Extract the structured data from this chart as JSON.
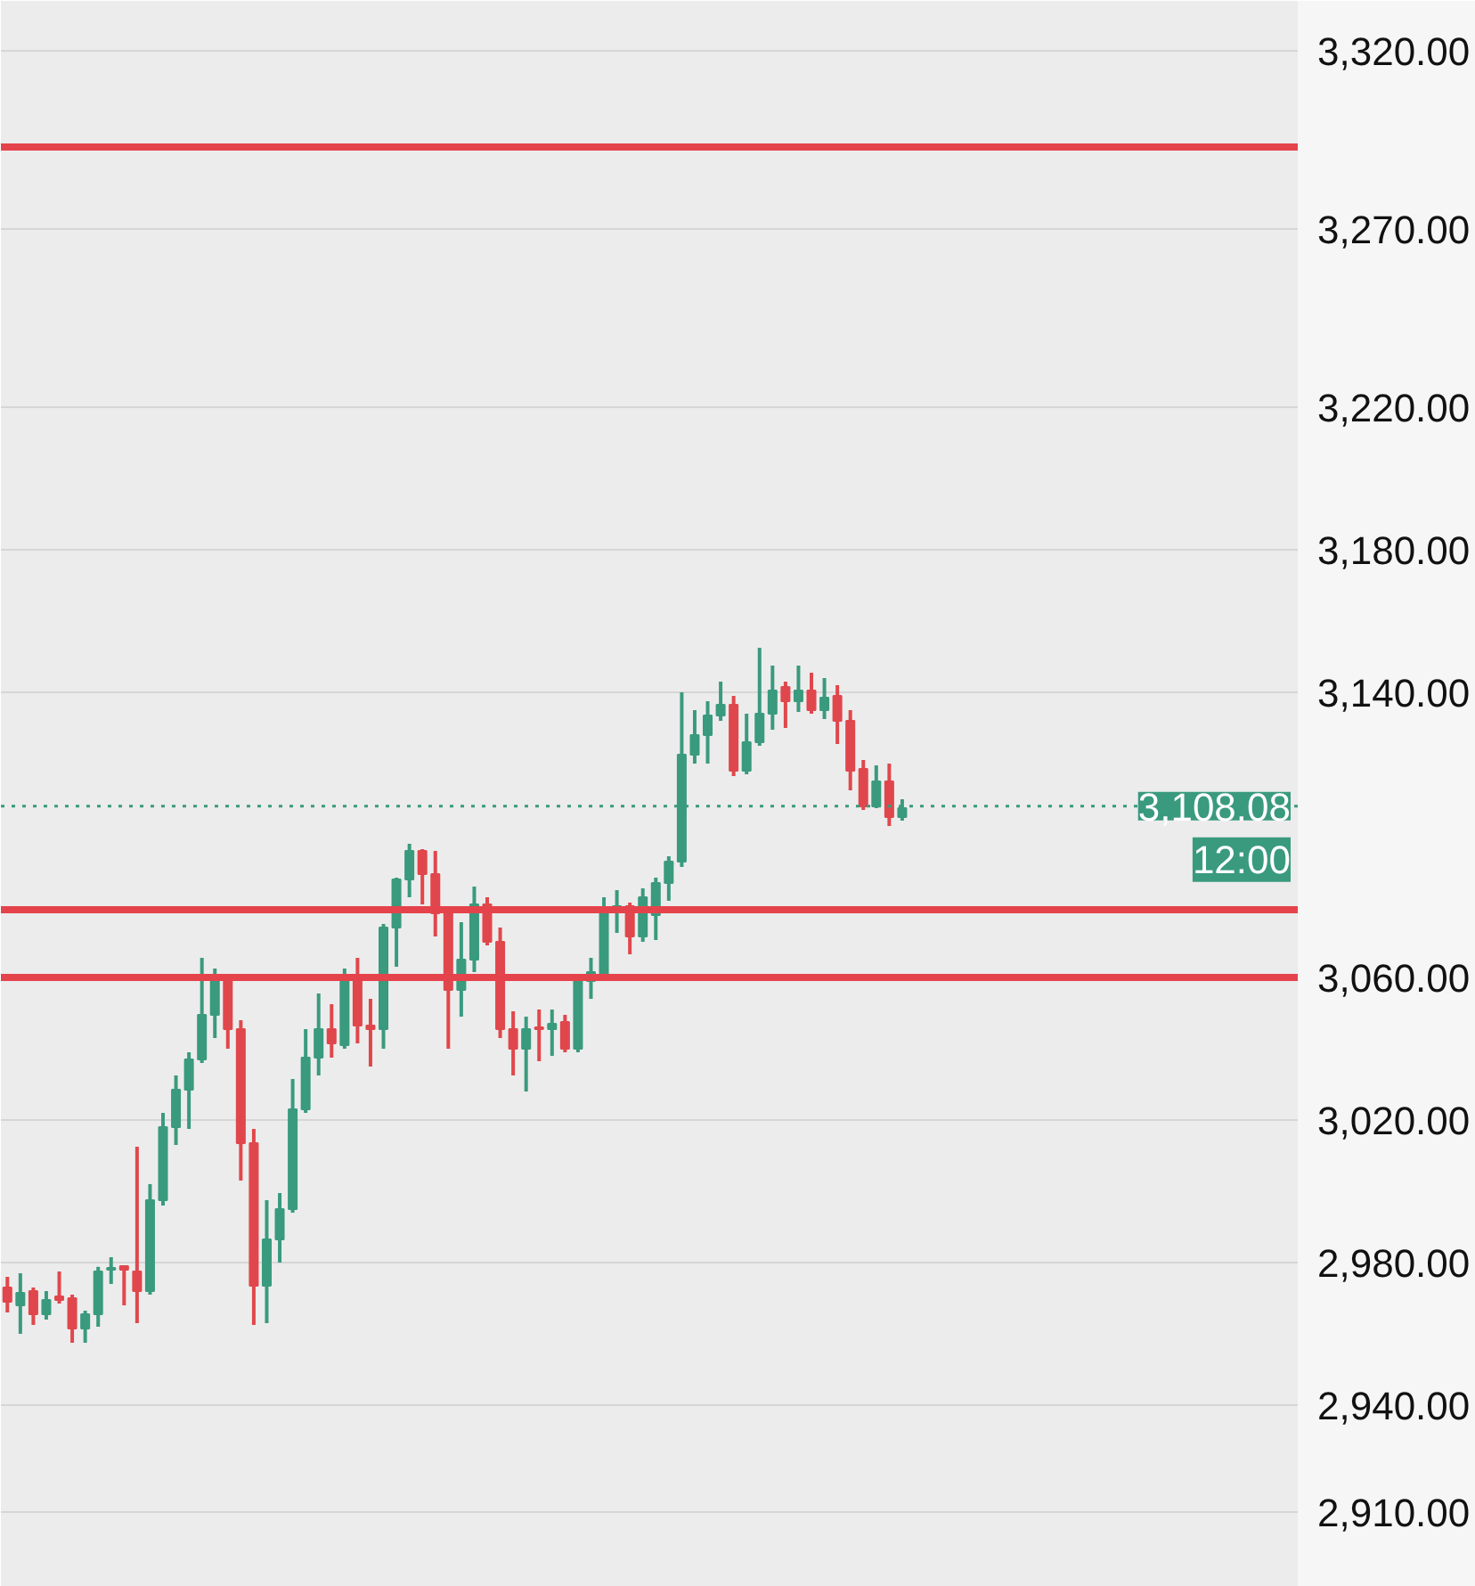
{
  "chart_data": {
    "type": "candlestick",
    "categories": [
      null,
      null,
      null,
      null,
      null,
      null,
      null,
      null,
      null,
      null,
      null,
      null,
      null,
      null,
      null,
      null,
      null,
      null,
      null,
      null,
      null,
      null,
      null,
      null,
      null,
      null,
      null,
      null,
      null,
      null,
      null,
      null,
      null,
      null,
      null,
      null,
      null,
      null,
      null,
      null,
      null,
      null,
      null,
      null,
      null,
      null,
      null,
      null,
      null,
      null,
      null,
      null,
      null,
      null,
      null,
      null,
      null,
      null,
      null,
      null,
      null,
      null,
      null,
      null,
      null,
      null,
      null,
      null,
      null,
      null,
      null,
      null,
      null,
      null,
      null,
      null,
      null,
      null,
      null,
      null,
      null,
      null,
      null,
      null,
      null,
      null,
      null,
      null,
      null,
      null,
      null,
      null,
      null,
      null,
      null,
      null,
      null,
      null,
      null,
      null
    ],
    "ohlc": [
      [
        2973,
        2976,
        2966,
        2969
      ],
      [
        2968,
        2977,
        2960,
        2971.5
      ],
      [
        2972,
        2973,
        2962.5,
        2965.5
      ],
      [
        2965.5,
        2972,
        2964,
        2969.5
      ],
      [
        2970.5,
        2977.5,
        2968.5,
        2969.5
      ],
      [
        2970,
        2971,
        2957.5,
        2961.5
      ],
      [
        2961.5,
        2966.5,
        2957.5,
        2965.5
      ],
      [
        2965.5,
        2978.8,
        2962,
        2977.5
      ],
      [
        2978,
        2981.5,
        2974,
        2978.5
      ],
      [
        2979,
        2979,
        2968,
        2978
      ],
      [
        2977.5,
        3012.5,
        2963,
        2972
      ],
      [
        2972,
        3002,
        2971,
        2997.5
      ],
      [
        2997.5,
        3022,
        2996,
        3018
      ],
      [
        3018,
        3032.5,
        3013,
        3028.5
      ],
      [
        3028.5,
        3039,
        3017.5,
        3037
      ],
      [
        3037,
        3065.5,
        3036,
        3049.5
      ],
      [
        3049.5,
        3062.5,
        3043,
        3060
      ],
      [
        3060.5,
        3061,
        3040,
        3045.5
      ],
      [
        3045.5,
        3048,
        3003,
        3013.5
      ],
      [
        3013.5,
        3017.5,
        2962.5,
        2973.5
      ],
      [
        2973.5,
        2997.5,
        2963,
        2986.5
      ],
      [
        2986.5,
        2999.5,
        2980,
        2995
      ],
      [
        2995,
        3031.5,
        2994,
        3023
      ],
      [
        3023,
        3045.5,
        3022,
        3037.5
      ],
      [
        3037.5,
        3055.5,
        3032.5,
        3045.5
      ],
      [
        3045.5,
        3052.5,
        3037.5,
        3041.5
      ],
      [
        3041,
        3062.5,
        3040,
        3059.5
      ],
      [
        3060,
        3065.5,
        3041.5,
        3046.5
      ],
      [
        3046.5,
        3054,
        3035,
        3045.5
      ],
      [
        3045.5,
        3075,
        3040,
        3074
      ],
      [
        3074,
        3088,
        3063,
        3087.5
      ],
      [
        3087.5,
        3097.5,
        3082.5,
        3095.5
      ],
      [
        3095.5,
        3096,
        3080.5,
        3089
      ],
      [
        3089,
        3095.5,
        3071.5,
        3078
      ],
      [
        3078,
        3079,
        3040,
        3056.5
      ],
      [
        3056.5,
        3075.5,
        3049,
        3065
      ],
      [
        3065,
        3085.5,
        3061.5,
        3080.5
      ],
      [
        3080.5,
        3082.5,
        3069,
        3070
      ],
      [
        3070,
        3074,
        3043,
        3045.5
      ],
      [
        3045.5,
        3050.5,
        3032.5,
        3040
      ],
      [
        3040,
        3049,
        3028,
        3045.5
      ],
      [
        3046,
        3051,
        3036.5,
        3045.5
      ],
      [
        3045.5,
        3051,
        3038,
        3047
      ],
      [
        3047.5,
        3049.5,
        3039,
        3040
      ],
      [
        3040,
        3060.5,
        3039,
        3059
      ],
      [
        3059,
        3065.5,
        3054,
        3061.5
      ],
      [
        3060,
        3082.5,
        3060,
        3079
      ],
      [
        3079,
        3084.5,
        3072.5,
        3080
      ],
      [
        3080,
        3081,
        3066.5,
        3071.5
      ],
      [
        3071.5,
        3085,
        3070,
        3082.5
      ],
      [
        3077.5,
        3088,
        3070.5,
        3086.5
      ],
      [
        3086.5,
        3094,
        3081.5,
        3092.5
      ],
      [
        3092.5,
        3140,
        3091,
        3122.5
      ],
      [
        3122.5,
        3135,
        3120,
        3128
      ],
      [
        3128,
        3137.5,
        3120,
        3133.5
      ],
      [
        3133.5,
        3143,
        3132,
        3136.5
      ],
      [
        3136.5,
        3139,
        3116.5,
        3118
      ],
      [
        3118,
        3134,
        3117,
        3126
      ],
      [
        3126,
        3152.5,
        3125,
        3134
      ],
      [
        3134,
        3147.5,
        3129.5,
        3140.5
      ],
      [
        3141.5,
        3143,
        3130,
        3137.5
      ],
      [
        3137.5,
        3147.5,
        3134.5,
        3140.5
      ],
      [
        3140.5,
        3145.5,
        3134,
        3135
      ],
      [
        3135,
        3144,
        3132.5,
        3138.5
      ],
      [
        3139,
        3142,
        3125.5,
        3132
      ],
      [
        3132,
        3135,
        3112.5,
        3118
      ],
      [
        3118.5,
        3121,
        3107,
        3108
      ],
      [
        3108,
        3119.5,
        3107.5,
        3115
      ],
      [
        3115,
        3120,
        3102.5,
        3105
      ],
      [
        3105,
        3110,
        3104,
        3107.5
      ],
      null,
      null,
      null,
      null,
      null,
      null,
      null,
      null,
      null,
      null,
      null,
      null,
      null,
      null,
      null,
      null,
      null,
      null,
      null,
      null,
      null,
      null,
      null,
      null,
      null,
      null,
      null,
      null,
      null,
      null
    ],
    "colors": [
      "#e0474c",
      "#3a9a7e",
      "#e0474c",
      "#3a9a7e",
      "#e0474c",
      "#e0474c",
      "#3a9a7e",
      "#3a9a7e",
      "#3a9a7e",
      "#e0474c",
      "#e0474c",
      "#3a9a7e",
      "#3a9a7e",
      "#3a9a7e",
      "#3a9a7e",
      "#3a9a7e",
      "#3a9a7e",
      "#e0474c",
      "#e0474c",
      "#e0474c",
      "#3a9a7e",
      "#3a9a7e",
      "#3a9a7e",
      "#3a9a7e",
      "#3a9a7e",
      "#e0474c",
      "#3a9a7e",
      "#e0474c",
      "#e0474c",
      "#3a9a7e",
      "#3a9a7e",
      "#3a9a7e",
      "#e0474c",
      "#e0474c",
      "#e0474c",
      "#3a9a7e",
      "#3a9a7e",
      "#e0474c",
      "#e0474c",
      "#e0474c",
      "#3a9a7e",
      "#e0474c",
      "#3a9a7e",
      "#e0474c",
      "#3a9a7e",
      "#3a9a7e",
      "#3a9a7e",
      "#3a9a7e",
      "#e0474c",
      "#3a9a7e",
      "#3a9a7e",
      "#3a9a7e",
      "#3a9a7e",
      "#3a9a7e",
      "#3a9a7e",
      "#3a9a7e",
      "#e0474c",
      "#3a9a7e",
      "#3a9a7e",
      "#3a9a7e",
      "#e0474c",
      "#3a9a7e",
      "#e0474c",
      "#3a9a7e",
      "#e0474c",
      "#e0474c",
      "#e0474c",
      "#3a9a7e",
      "#e0474c",
      "#3a9a7e",
      null,
      null,
      null,
      null,
      null,
      null,
      null,
      null,
      null,
      null,
      null,
      null,
      null,
      null,
      null,
      null,
      null,
      null,
      null,
      null,
      null,
      null,
      null,
      null,
      null,
      null,
      null,
      null,
      null,
      null
    ],
    "ylim": [
      2889,
      3334
    ],
    "yticks": [
      {
        "value": 2910,
        "label": "2,910.00"
      },
      {
        "value": 2940,
        "label": "2,940.00"
      },
      {
        "value": 2980,
        "label": "2,980.00"
      },
      {
        "value": 3020,
        "label": "3,020.00"
      },
      {
        "value": 3060,
        "label": "3,060.00"
      },
      {
        "value": 3140,
        "label": "3,140.00"
      },
      {
        "value": 3180,
        "label": "3,180.00"
      },
      {
        "value": 3220,
        "label": "3,220.00"
      },
      {
        "value": 3270,
        "label": "3,270.00"
      },
      {
        "value": 3320,
        "label": "3,320.00"
      }
    ],
    "grid": "y",
    "tick_labels": "y",
    "ref_lines": [
      {
        "axis": "y",
        "value": 3293,
        "color": "#e5434b",
        "line_style": "solid"
      },
      {
        "axis": "y",
        "value": 3079,
        "color": "#e5434b",
        "line_style": "solid"
      },
      {
        "axis": "y",
        "value": 3060,
        "color": "#e5434b",
        "line_style": "solid"
      },
      {
        "axis": "y",
        "value": 3108.08,
        "label": "3,108.08",
        "color": "#3a9a7e",
        "line_style": "dotted"
      }
    ],
    "annotations": [
      "12:00"
    ]
  }
}
